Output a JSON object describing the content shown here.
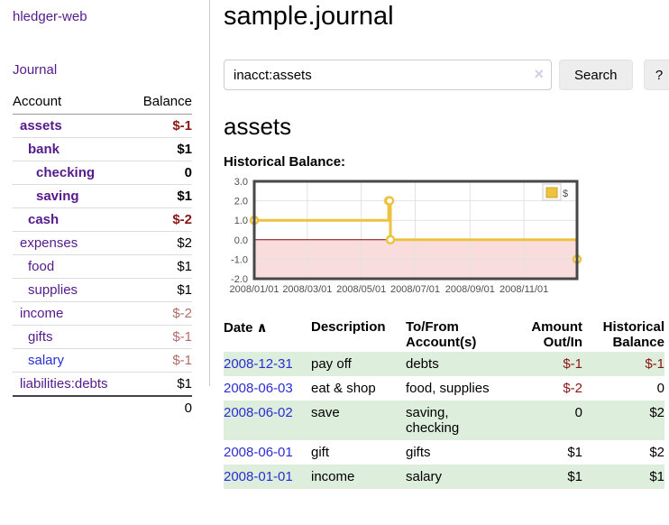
{
  "colors": {
    "purple-link": "#551a8b",
    "blue-link": "#2b2dd4",
    "neg-strong": "#8b1515",
    "neg-muted": "#b36b6b",
    "row-green": "#ddeedd",
    "chart-gold": "#edc240"
  },
  "sidebar": {
    "app_title": "hledger-web",
    "journal_label": "Journal",
    "accounts_table": {
      "headers": {
        "account": "Account",
        "balance": "Balance"
      },
      "rows": [
        {
          "name": "assets",
          "indent": 1,
          "bold": true,
          "balance": "$-1",
          "balance_style": "neg-strong"
        },
        {
          "name": "bank",
          "indent": 2,
          "bold": true,
          "balance": "$1",
          "balance_style": ""
        },
        {
          "name": "checking",
          "indent": 3,
          "bold": true,
          "balance": "0",
          "balance_style": ""
        },
        {
          "name": "saving",
          "indent": 3,
          "bold": true,
          "balance": "$1",
          "balance_style": ""
        },
        {
          "name": "cash",
          "indent": 2,
          "bold": true,
          "balance": "$-2",
          "balance_style": "neg-strong"
        },
        {
          "name": "expenses",
          "indent": 1,
          "bold": false,
          "balance": "$2",
          "balance_style": ""
        },
        {
          "name": "food",
          "indent": 2,
          "bold": false,
          "balance": "$1",
          "balance_style": ""
        },
        {
          "name": "supplies",
          "indent": 2,
          "bold": false,
          "balance": "$1",
          "balance_style": ""
        },
        {
          "name": "income",
          "indent": 1,
          "bold": false,
          "balance": "$-2",
          "balance_style": "neg-muted"
        },
        {
          "name": "gifts",
          "indent": 2,
          "bold": false,
          "balance": "$-1",
          "balance_style": "neg-muted"
        },
        {
          "name": "salary",
          "indent": 2,
          "bold": false,
          "link_color": "blue",
          "balance": "$-1",
          "balance_style": "neg-muted"
        },
        {
          "name": "liabilities:debts",
          "indent": 1,
          "bold": false,
          "balance": "$1",
          "balance_style": ""
        }
      ],
      "total": "0"
    }
  },
  "header": {
    "title": "sample.journal"
  },
  "search": {
    "value": "inacct:assets",
    "clear_icon": "×",
    "search_button": "Search",
    "help_button": "?"
  },
  "main": {
    "account_heading": "assets",
    "chart_label": "Historical Balance:"
  },
  "chart_data": {
    "type": "line",
    "step": true,
    "title": "Historical Balance",
    "series": [
      {
        "name": "$",
        "color": "#edc240",
        "points": [
          [
            "2008-01-01",
            1
          ],
          [
            "2008-06-01",
            2
          ],
          [
            "2008-06-02",
            2
          ],
          [
            "2008-06-03",
            0
          ],
          [
            "2008-12-31",
            -1
          ]
        ]
      }
    ],
    "x_range": [
      "2008-01-01",
      "2008-12-31"
    ],
    "x_ticks": [
      "2008/01/01",
      "2008/03/01",
      "2008/05/01",
      "2008/07/01",
      "2008/09/01",
      "2008/11/01"
    ],
    "y_ticks": [
      "3.0",
      "2.0",
      "1.0",
      "0.0",
      "-1.0",
      "-2.0"
    ],
    "ylim": [
      -2,
      3
    ],
    "grid": true,
    "legend": {
      "label": "$",
      "position": "top-right"
    },
    "negative_region_color": "#f9dddd",
    "zero_line_color": "#8b0000"
  },
  "register": {
    "headers": {
      "date": "Date",
      "sort_icon": "∧",
      "description": "Description",
      "accounts": "To/From Account(s)",
      "amount": "Amount Out/In",
      "balance": "Historical Balance"
    },
    "rows": [
      {
        "date": "2008-12-31",
        "description": "pay off",
        "accounts": "debts",
        "amount": "$-1",
        "amount_neg": true,
        "balance": "$-1",
        "balance_neg": true
      },
      {
        "date": "2008-06-03",
        "description": "eat & shop",
        "accounts": "food, supplies",
        "amount": "$-2",
        "amount_neg": true,
        "balance": "0",
        "balance_neg": false
      },
      {
        "date": "2008-06-02",
        "description": "save",
        "accounts": "saving, checking",
        "amount": "0",
        "amount_neg": false,
        "balance": "$2",
        "balance_neg": false
      },
      {
        "date": "2008-06-01",
        "description": "gift",
        "accounts": "gifts",
        "amount": "$1",
        "amount_neg": false,
        "balance": "$2",
        "balance_neg": false
      },
      {
        "date": "2008-01-01",
        "description": "income",
        "accounts": "salary",
        "amount": "$1",
        "amount_neg": false,
        "balance": "$1",
        "balance_neg": false
      }
    ]
  }
}
